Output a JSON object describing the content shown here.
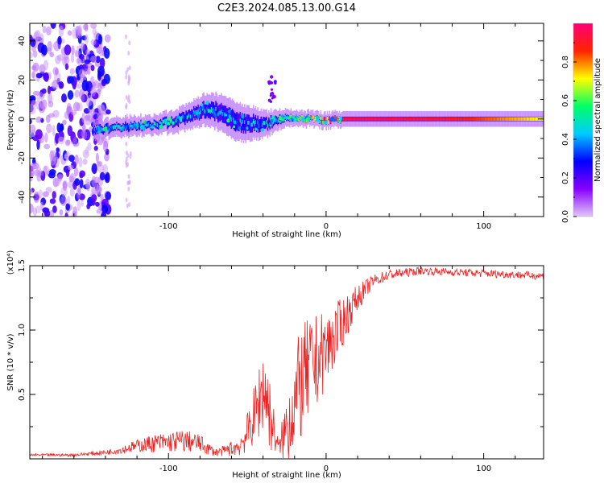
{
  "title": "C2E3.2024.085.13.00.G14",
  "colors": {
    "snr_line": "#ee2222",
    "colormap": [
      "#e0c8f6",
      "#8800ff",
      "#0000ff",
      "#00ccff",
      "#00ff66",
      "#ffff00",
      "#ff2200",
      "#ff0077"
    ]
  },
  "chart_data": [
    {
      "id": "spectrogram",
      "type": "heatmap",
      "xlabel": "Height of straight line (km)",
      "ylabel": "Frequency (Hz)",
      "xlim": [
        -188,
        138
      ],
      "ylim": [
        -50,
        49
      ],
      "xticks": [
        -100,
        0,
        100
      ],
      "xtick_labels": [
        "-100",
        "0",
        "100"
      ],
      "yticks": [
        -40,
        -20,
        0,
        20,
        40
      ],
      "ytick_labels": [
        "-40",
        "-20",
        "0",
        "20",
        "40"
      ],
      "colorbar": {
        "label": "Normalized spectral amplitude",
        "range": [
          0,
          1
        ],
        "ticks": [
          0,
          0.2,
          0.4,
          0.6,
          0.8
        ],
        "tick_labels": [
          "0.0",
          "0.2",
          "0.4",
          "0.6",
          "0.8"
        ]
      },
      "ridge": {
        "x": [
          -148,
          -130,
          -110,
          -95,
          -85,
          -78,
          -70,
          -60,
          -50,
          -45,
          -40,
          -30,
          -20,
          -10,
          0,
          10,
          40,
          80,
          138
        ],
        "center_hz": [
          -6,
          -4,
          -3,
          -1,
          2,
          5,
          4,
          0,
          -3,
          -2,
          -3,
          0,
          0,
          0,
          -1,
          0,
          0,
          0,
          0
        ],
        "halfwidth_hz": [
          3,
          3,
          3,
          4,
          5,
          6,
          7,
          8,
          7,
          6,
          5,
          3,
          2,
          2,
          2,
          2,
          2,
          2,
          2
        ],
        "peak_amplitude": [
          0.45,
          0.5,
          0.5,
          0.55,
          0.55,
          0.5,
          0.5,
          0.5,
          0.45,
          0.45,
          0.5,
          0.55,
          0.6,
          0.75,
          0.9,
          0.95,
          0.95,
          0.9,
          0.7
        ]
      },
      "noise_region_x": [
        -188,
        -138
      ],
      "noise_amplitude": 0.15
    },
    {
      "id": "snr",
      "type": "line",
      "xlabel": "Height of straight line (km)",
      "ylabel": "SNR (10 * v/v)",
      "scale_label": "(x10⁴)",
      "xlim": [
        -188,
        138
      ],
      "ylim": [
        0,
        1.5
      ],
      "xticks": [
        -100,
        0,
        100
      ],
      "xtick_labels": [
        "-100",
        "0",
        "100"
      ],
      "yticks": [
        0.5,
        1.0,
        1.5
      ],
      "ytick_labels": [
        "0.5",
        "1.0",
        "1.5"
      ],
      "envelope": {
        "x": [
          -188,
          -160,
          -150,
          -140,
          -130,
          -120,
          -110,
          -100,
          -90,
          -80,
          -75,
          -70,
          -65,
          -60,
          -55,
          -50,
          -45,
          -40,
          -38,
          -35,
          -30,
          -25,
          -20,
          -15,
          -10,
          0,
          10,
          20,
          30,
          40,
          60,
          80,
          100,
          120,
          138
        ],
        "mean": [
          0.03,
          0.03,
          0.04,
          0.05,
          0.07,
          0.1,
          0.12,
          0.13,
          0.14,
          0.12,
          0.08,
          0.05,
          0.06,
          0.08,
          0.1,
          0.2,
          0.35,
          0.55,
          0.5,
          0.3,
          0.08,
          0.25,
          0.45,
          0.6,
          0.7,
          0.85,
          1.05,
          1.25,
          1.38,
          1.43,
          1.46,
          1.45,
          1.44,
          1.43,
          1.42
        ],
        "jitter": [
          0.01,
          0.01,
          0.015,
          0.02,
          0.03,
          0.05,
          0.07,
          0.08,
          0.09,
          0.07,
          0.05,
          0.03,
          0.04,
          0.06,
          0.08,
          0.15,
          0.25,
          0.35,
          0.35,
          0.25,
          0.05,
          0.3,
          0.4,
          0.45,
          0.4,
          0.3,
          0.2,
          0.1,
          0.05,
          0.04,
          0.03,
          0.03,
          0.03,
          0.03,
          0.03
        ]
      }
    }
  ]
}
